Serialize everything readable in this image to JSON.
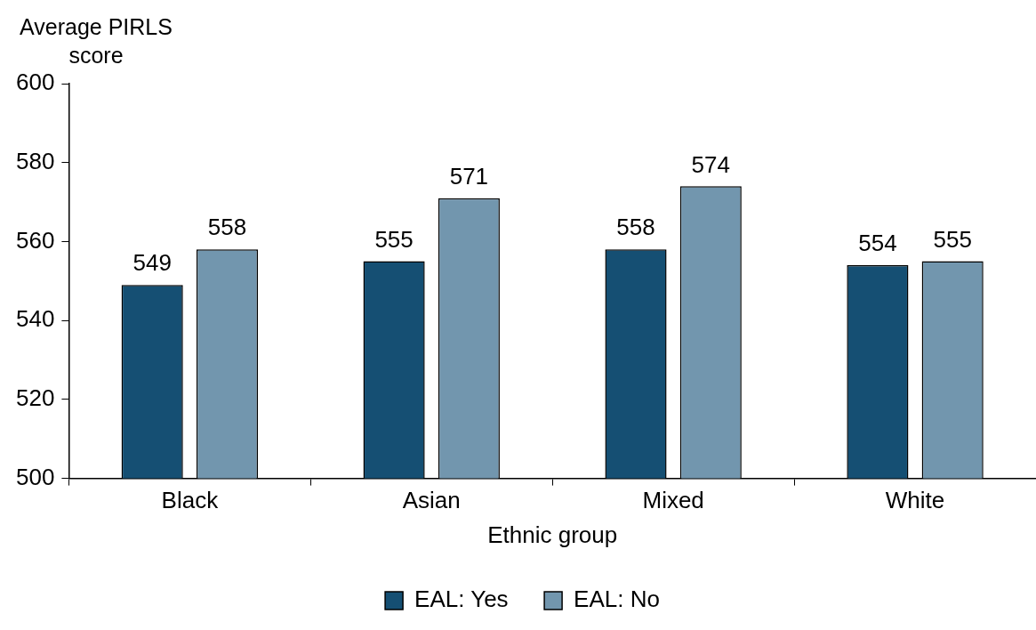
{
  "chart_data": {
    "type": "bar",
    "xlabel": "Ethnic group",
    "ylabel": "Average PIRLS score",
    "categories": [
      "Black",
      "Asian",
      "Mixed",
      "White"
    ],
    "series": [
      {
        "name": "EAL: Yes",
        "color": "#154f73",
        "values": [
          549,
          555,
          558,
          554
        ]
      },
      {
        "name": "EAL: No",
        "color": "#7296ae",
        "values": [
          558,
          571,
          574,
          555
        ]
      }
    ],
    "ylim": [
      500,
      600
    ],
    "yticks": [
      500,
      520,
      540,
      560,
      580,
      600
    ],
    "grid": false,
    "legend": "bottom",
    "data_labels": true
  }
}
